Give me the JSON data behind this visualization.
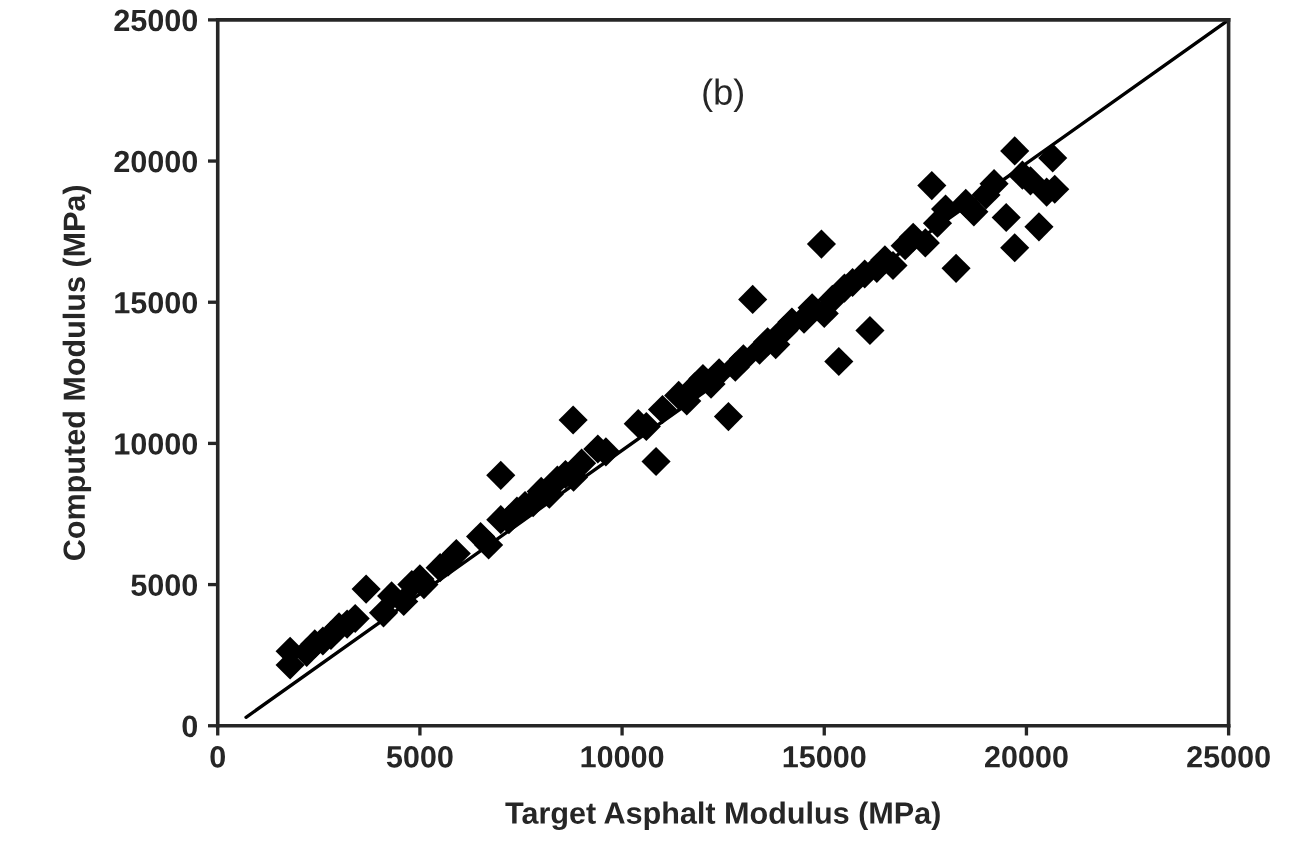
{
  "chart_data": {
    "type": "scatter",
    "xlabel": "Target Asphalt Modulus (MPa)",
    "ylabel": "Computed Modulus (MPa)",
    "xlim": [
      0,
      25000
    ],
    "ylim": [
      0,
      25000
    ],
    "xticks": [
      0,
      5000,
      10000,
      15000,
      20000,
      25000
    ],
    "yticks": [
      0,
      5000,
      10000,
      15000,
      20000,
      25000
    ],
    "grid": false,
    "annotations": [
      "(b)"
    ],
    "series": [
      {
        "color": "#000000",
        "marker": "diamond",
        "x": [
          1790,
          1790,
          2200,
          2400,
          2600,
          2800,
          3000,
          3200,
          3400,
          3670,
          4100,
          4300,
          4600,
          4800,
          5000,
          5100,
          5500,
          5700,
          5900,
          6500,
          6700,
          7000,
          7000,
          7200,
          7400,
          7600,
          7800,
          8000,
          8200,
          8400,
          8600,
          8790,
          8800,
          9000,
          9400,
          9600,
          10400,
          10600,
          10840,
          11000,
          11400,
          11600,
          11800,
          12000,
          12200,
          12400,
          12630,
          12800,
          13000,
          13230,
          13400,
          13600,
          13800,
          14000,
          14200,
          14500,
          14700,
          14930,
          15000,
          15200,
          15360,
          15500,
          15700,
          16000,
          16130,
          16300,
          16500,
          16700,
          17000,
          17200,
          17500,
          17660,
          17800,
          18000,
          18260,
          18500,
          18700,
          19000,
          19200,
          19500,
          19710,
          19710,
          19900,
          20100,
          20310,
          20500,
          20650,
          20700
        ],
        "values": [
          2640,
          2150,
          2600,
          2900,
          3000,
          3200,
          3500,
          3600,
          3800,
          4840,
          4000,
          4600,
          4400,
          5000,
          5200,
          5000,
          5600,
          5800,
          6100,
          6700,
          6400,
          7300,
          8870,
          7300,
          7600,
          7800,
          7900,
          8300,
          8200,
          8700,
          8900,
          10830,
          8800,
          9300,
          9800,
          9700,
          10700,
          10600,
          9360,
          11200,
          11700,
          11500,
          12000,
          12300,
          12100,
          12500,
          10950,
          12700,
          13000,
          15100,
          13300,
          13600,
          13500,
          14000,
          14300,
          14400,
          14800,
          17060,
          14600,
          15100,
          12900,
          15500,
          15700,
          16000,
          14000,
          16200,
          16500,
          16300,
          17000,
          17300,
          17100,
          19130,
          17800,
          18300,
          16200,
          18500,
          18200,
          18800,
          19200,
          18000,
          20360,
          16930,
          19500,
          19300,
          17670,
          18900,
          20110,
          19000
        ]
      },
      {
        "type": "line",
        "color": "#000000",
        "x": [
          700,
          25000
        ],
        "values": [
          300,
          25000
        ]
      }
    ]
  }
}
